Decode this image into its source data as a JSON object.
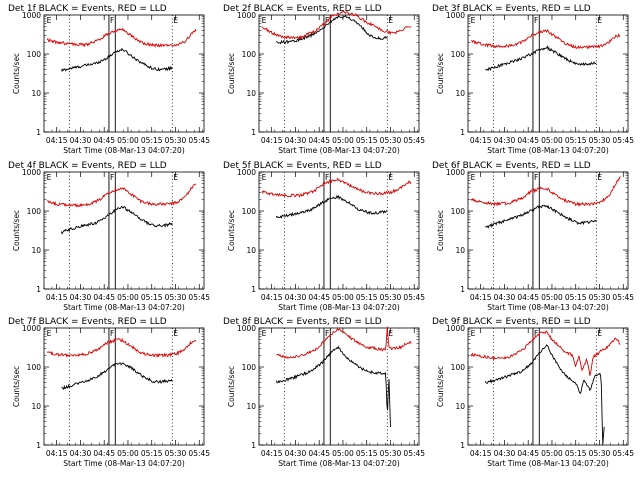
{
  "figure": {
    "background": "#ffffff",
    "event_color": "#000000",
    "lld_color": "#dd0000"
  },
  "chart_data": [
    {
      "type": "line",
      "title": "Det 1f BLACK = Events, RED = LLD",
      "xlabel": "Start Time (08-Mar-13 04:07:20)",
      "ylabel": "Counts/sec",
      "yscale": "log",
      "ylim": [
        1,
        1000
      ],
      "yticks": [
        "1",
        "10",
        "100",
        "1000"
      ],
      "xticks": [
        "04:15",
        "04:30",
        "04:45",
        "05:00",
        "05:15",
        "05:30",
        "05:45"
      ],
      "markers": [
        "F",
        "E"
      ],
      "series": [
        {
          "name": "Events",
          "color": "#000000",
          "x": [
            "04:18",
            "04:23",
            "04:30",
            "04:40",
            "04:47",
            "04:52",
            "04:57",
            "05:02",
            "05:10",
            "05:16",
            "05:22",
            "05:28"
          ],
          "y": [
            38,
            42,
            48,
            58,
            80,
            115,
            130,
            90,
            55,
            42,
            40,
            44
          ]
        },
        {
          "name": "LLD",
          "color": "#dd0000",
          "x": [
            "04:09",
            "04:15",
            "04:23",
            "04:33",
            "04:42",
            "04:47",
            "04:53",
            "04:57",
            "05:00",
            "05:08",
            "05:15",
            "05:25",
            "05:31",
            "05:36",
            "05:40",
            "05:43"
          ],
          "y": [
            230,
            200,
            180,
            170,
            230,
            330,
            400,
            420,
            340,
            200,
            170,
            165,
            170,
            210,
            330,
            400
          ]
        }
      ]
    },
    {
      "type": "line",
      "title": "Det 2f BLACK = Events, RED = LLD",
      "xlabel": "Start Time (08-Mar-13 04:07:20)",
      "ylabel": "Counts/sec",
      "yscale": "log",
      "ylim": [
        1,
        1000
      ],
      "yticks": [
        "1",
        "10",
        "100",
        "1000"
      ],
      "xticks": [
        "04:15",
        "04:30",
        "04:45",
        "05:00",
        "05:15",
        "05:30",
        "05:45"
      ],
      "markers": [
        "F",
        "E"
      ],
      "series": [
        {
          "name": "Events",
          "color": "#000000",
          "x": [
            "04:18",
            "04:23",
            "04:30",
            "04:40",
            "04:47",
            "04:52",
            "04:57",
            "05:02",
            "05:10",
            "05:16",
            "05:22",
            "05:28"
          ],
          "y": [
            200,
            200,
            215,
            300,
            450,
            650,
            900,
            900,
            600,
            320,
            250,
            260
          ]
        },
        {
          "name": "LLD",
          "color": "#dd0000",
          "x": [
            "04:09",
            "04:15",
            "04:23",
            "04:33",
            "04:42",
            "04:47",
            "04:53",
            "04:57",
            "05:00",
            "05:08",
            "05:15",
            "05:25",
            "05:31",
            "05:36",
            "05:40",
            "05:43"
          ],
          "y": [
            500,
            350,
            270,
            270,
            380,
            550,
            900,
            1100,
            1200,
            1000,
            650,
            400,
            340,
            380,
            500,
            520
          ]
        }
      ]
    },
    {
      "type": "line",
      "title": "Det 3f BLACK = Events, RED = LLD",
      "xlabel": "Start Time (08-Mar-13 04:07:20)",
      "ylabel": "Counts/sec",
      "yscale": "log",
      "ylim": [
        1,
        1000
      ],
      "yticks": [
        "1",
        "10",
        "100",
        "1000"
      ],
      "xticks": [
        "04:15",
        "04:30",
        "04:45",
        "05:00",
        "05:15",
        "05:30",
        "05:45"
      ],
      "markers": [
        "F",
        "E"
      ],
      "series": [
        {
          "name": "Events",
          "color": "#000000",
          "x": [
            "04:18",
            "04:23",
            "04:30",
            "04:40",
            "04:47",
            "04:52",
            "04:57",
            "05:02",
            "05:10",
            "05:16",
            "05:22",
            "05:28"
          ],
          "y": [
            38,
            45,
            55,
            75,
            100,
            130,
            145,
            110,
            70,
            55,
            55,
            60
          ]
        },
        {
          "name": "LLD",
          "color": "#dd0000",
          "x": [
            "04:09",
            "04:15",
            "04:23",
            "04:33",
            "04:42",
            "04:47",
            "04:53",
            "04:57",
            "05:00",
            "05:08",
            "05:15",
            "05:25",
            "05:31",
            "05:36",
            "05:40",
            "05:43"
          ],
          "y": [
            220,
            180,
            160,
            160,
            210,
            300,
            370,
            390,
            320,
            190,
            150,
            150,
            160,
            200,
            280,
            300
          ]
        }
      ]
    },
    {
      "type": "line",
      "title": "Det 4f BLACK = Events, RED = LLD",
      "xlabel": "Start Time (08-Mar-13 04:07:20)",
      "ylabel": "Counts/sec",
      "yscale": "log",
      "ylim": [
        1,
        1000
      ],
      "yticks": [
        "1",
        "10",
        "100",
        "1000"
      ],
      "xticks": [
        "04:15",
        "04:30",
        "04:45",
        "05:00",
        "05:15",
        "05:30",
        "05:45"
      ],
      "markers": [
        "F",
        "E"
      ],
      "series": [
        {
          "name": "Events",
          "color": "#000000",
          "x": [
            "04:18",
            "04:23",
            "04:30",
            "04:40",
            "04:47",
            "04:52",
            "04:57",
            "05:02",
            "05:10",
            "05:16",
            "05:22",
            "05:28"
          ],
          "y": [
            28,
            34,
            40,
            50,
            75,
            105,
            125,
            95,
            55,
            42,
            42,
            48
          ]
        },
        {
          "name": "LLD",
          "color": "#dd0000",
          "x": [
            "04:09",
            "04:15",
            "04:23",
            "04:33",
            "04:42",
            "04:47",
            "04:53",
            "04:57",
            "05:00",
            "05:08",
            "05:15",
            "05:25",
            "05:31",
            "05:36",
            "05:40",
            "05:43"
          ],
          "y": [
            180,
            150,
            140,
            140,
            190,
            290,
            360,
            380,
            310,
            180,
            150,
            150,
            165,
            230,
            380,
            520
          ]
        }
      ]
    },
    {
      "type": "line",
      "title": "Det 5f BLACK = Events, RED = LLD",
      "xlabel": "Start Time (08-Mar-13 04:07:20)",
      "ylabel": "Counts/sec",
      "yscale": "log",
      "ylim": [
        1,
        1000
      ],
      "yticks": [
        "1",
        "10",
        "100",
        "1000"
      ],
      "xticks": [
        "04:15",
        "04:30",
        "04:45",
        "05:00",
        "05:15",
        "05:30",
        "05:45"
      ],
      "markers": [
        "F",
        "E"
      ],
      "series": [
        {
          "name": "Events",
          "color": "#000000",
          "x": [
            "04:18",
            "04:23",
            "04:30",
            "04:40",
            "04:47",
            "04:52",
            "04:57",
            "05:02",
            "05:10",
            "05:16",
            "05:22",
            "05:28"
          ],
          "y": [
            70,
            75,
            85,
            110,
            160,
            210,
            230,
            180,
            110,
            90,
            90,
            100
          ]
        },
        {
          "name": "LLD",
          "color": "#dd0000",
          "x": [
            "04:09",
            "04:15",
            "04:23",
            "04:33",
            "04:42",
            "04:47",
            "04:53",
            "04:57",
            "05:00",
            "05:08",
            "05:15",
            "05:25",
            "05:31",
            "05:36",
            "05:40",
            "05:43"
          ],
          "y": [
            320,
            270,
            250,
            250,
            330,
            470,
            600,
            640,
            560,
            380,
            290,
            280,
            310,
            380,
            520,
            560
          ]
        }
      ]
    },
    {
      "type": "line",
      "title": "Det 6f BLACK = Events, RED = LLD",
      "xlabel": "Start Time (08-Mar-13 04:07:20)",
      "ylabel": "Counts/sec",
      "yscale": "log",
      "ylim": [
        1,
        1000
      ],
      "yticks": [
        "1",
        "10",
        "100",
        "1000"
      ],
      "xticks": [
        "04:15",
        "04:30",
        "04:45",
        "05:00",
        "05:15",
        "05:30",
        "05:45"
      ],
      "markers": [
        "F",
        "E"
      ],
      "series": [
        {
          "name": "Events",
          "color": "#000000",
          "x": [
            "04:18",
            "04:23",
            "04:30",
            "04:40",
            "04:47",
            "04:52",
            "04:57",
            "05:02",
            "05:10",
            "05:16",
            "05:22",
            "05:28"
          ],
          "y": [
            38,
            45,
            55,
            75,
            105,
            130,
            135,
            100,
            65,
            50,
            50,
            60
          ]
        },
        {
          "name": "LLD",
          "color": "#dd0000",
          "x": [
            "04:09",
            "04:15",
            "04:23",
            "04:33",
            "04:42",
            "04:47",
            "04:53",
            "04:57",
            "05:00",
            "05:08",
            "05:15",
            "05:25",
            "05:31",
            "05:36",
            "05:40",
            "05:43"
          ],
          "y": [
            200,
            170,
            150,
            160,
            220,
            320,
            380,
            370,
            300,
            190,
            150,
            150,
            170,
            250,
            480,
            750
          ]
        }
      ]
    },
    {
      "type": "line",
      "title": "Det 7f BLACK = Events, RED = LLD",
      "xlabel": "Start Time (08-Mar-13 04:07:20)",
      "ylabel": "Counts/sec",
      "yscale": "log",
      "ylim": [
        1,
        1000
      ],
      "yticks": [
        "1",
        "10",
        "100",
        "1000"
      ],
      "xticks": [
        "04:15",
        "04:30",
        "04:45",
        "05:00",
        "05:15",
        "05:30",
        "05:45"
      ],
      "markers": [
        "F",
        "E"
      ],
      "series": [
        {
          "name": "Events",
          "color": "#000000",
          "x": [
            "04:18",
            "04:23",
            "04:30",
            "04:40",
            "04:47",
            "04:52",
            "04:57",
            "05:02",
            "05:10",
            "05:16",
            "05:22",
            "05:28"
          ],
          "y": [
            28,
            32,
            40,
            55,
            85,
            115,
            125,
            95,
            55,
            42,
            42,
            45
          ]
        },
        {
          "name": "LLD",
          "color": "#dd0000",
          "x": [
            "04:09",
            "04:15",
            "04:23",
            "04:33",
            "04:42",
            "04:47",
            "04:53",
            "04:57",
            "05:00",
            "05:08",
            "05:15",
            "05:25",
            "05:31",
            "05:36",
            "05:40",
            "05:43"
          ],
          "y": [
            240,
            210,
            200,
            210,
            290,
            420,
            500,
            480,
            380,
            230,
            200,
            200,
            220,
            290,
            430,
            470
          ]
        }
      ]
    },
    {
      "type": "line",
      "title": "Det 8f BLACK = Events, RED = LLD",
      "xlabel": "Start Time (08-Mar-13 04:07:20)",
      "ylabel": "Counts/sec",
      "yscale": "log",
      "ylim": [
        1,
        1000
      ],
      "yticks": [
        "1",
        "10",
        "100",
        "1000"
      ],
      "xticks": [
        "04:15",
        "04:30",
        "04:45",
        "05:00",
        "05:15",
        "05:30",
        "05:45"
      ],
      "markers": [
        "F",
        "E"
      ],
      "series": [
        {
          "name": "Events",
          "color": "#000000",
          "x": [
            "04:18",
            "04:23",
            "04:30",
            "04:40",
            "04:47",
            "04:52",
            "04:57",
            "05:02",
            "05:10",
            "05:16",
            "05:22",
            "05:27",
            "05:28",
            "05:29",
            "05:30"
          ],
          "y": [
            42,
            45,
            55,
            80,
            130,
            230,
            330,
            180,
            100,
            75,
            70,
            70,
            5,
            60,
            3
          ]
        },
        {
          "name": "LLD",
          "color": "#dd0000",
          "x": [
            "04:18",
            "04:23",
            "04:33",
            "04:42",
            "04:47",
            "04:53",
            "04:57",
            "05:00",
            "05:08",
            "05:15",
            "05:25",
            "05:27",
            "05:28",
            "05:29",
            "05:31",
            "05:36",
            "05:40",
            "05:43"
          ],
          "y": [
            200,
            180,
            190,
            260,
            420,
            700,
            950,
            800,
            450,
            320,
            280,
            300,
            1000,
            320,
            300,
            320,
            400,
            420
          ]
        }
      ]
    },
    {
      "type": "line",
      "title": "Det 9f BLACK = Events, RED = LLD",
      "xlabel": "Start Time (08-Mar-13 04:07:20)",
      "ylabel": "Counts/sec",
      "yscale": "log",
      "ylim": [
        1,
        1000
      ],
      "yticks": [
        "1",
        "10",
        "100",
        "1000"
      ],
      "xticks": [
        "04:15",
        "04:30",
        "04:45",
        "05:00",
        "05:15",
        "05:30",
        "05:45"
      ],
      "markers": [
        "F",
        "E"
      ],
      "series": [
        {
          "name": "Events",
          "color": "#000000",
          "x": [
            "04:18",
            "04:23",
            "04:30",
            "04:40",
            "04:47",
            "04:52",
            "04:57",
            "05:00",
            "05:05",
            "05:10",
            "05:15",
            "05:18",
            "05:20",
            "05:24",
            "05:27",
            "05:31",
            "05:32",
            "05:33"
          ],
          "y": [
            40,
            45,
            55,
            75,
            120,
            230,
            380,
            200,
            90,
            55,
            40,
            20,
            50,
            25,
            60,
            65,
            1,
            3
          ]
        },
        {
          "name": "LLD",
          "color": "#dd0000",
          "x": [
            "04:09",
            "04:15",
            "04:23",
            "04:33",
            "04:42",
            "04:47",
            "04:53",
            "04:57",
            "05:00",
            "05:08",
            "05:13",
            "05:15",
            "05:17",
            "05:19",
            "05:22",
            "05:24",
            "05:26",
            "05:31",
            "05:36",
            "05:40",
            "05:43"
          ],
          "y": [
            210,
            190,
            170,
            180,
            280,
            480,
            750,
            800,
            500,
            250,
            200,
            100,
            200,
            80,
            160,
            60,
            180,
            260,
            350,
            550,
            400
          ]
        }
      ]
    }
  ]
}
